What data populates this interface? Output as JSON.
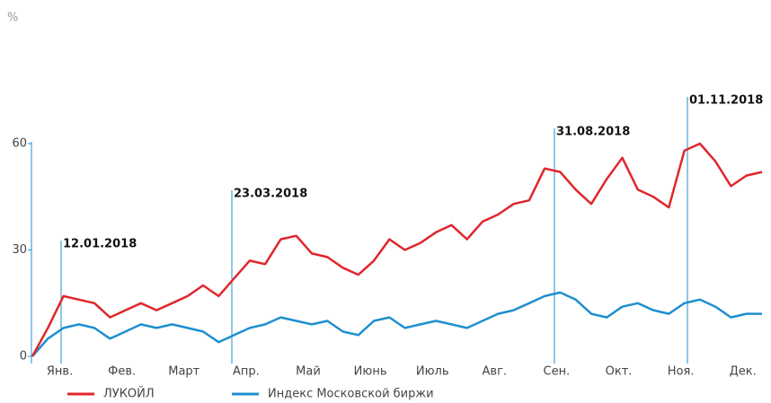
{
  "chart_data": {
    "type": "line",
    "y_label": "%",
    "categories": [
      null,
      null,
      "Янв.",
      null,
      null,
      null,
      "Фев.",
      null,
      null,
      null,
      "Март",
      null,
      null,
      null,
      "Апр.",
      null,
      null,
      null,
      "Май",
      null,
      null,
      null,
      "Июнь",
      null,
      null,
      null,
      "Июль",
      null,
      null,
      null,
      "Авг.",
      null,
      null,
      null,
      "Сен.",
      null,
      null,
      null,
      "Окт.",
      null,
      null,
      null,
      "Ноя.",
      null,
      null,
      null,
      "Дек.",
      null
    ],
    "series": [
      {
        "name": "ЛУКОЙЛ",
        "color": "#e0262c",
        "values": [
          0,
          8,
          17,
          16,
          15,
          11,
          13,
          15,
          13,
          15,
          17,
          20,
          17,
          22,
          27,
          26,
          33,
          34,
          29,
          28,
          25,
          23,
          27,
          33,
          30,
          32,
          35,
          37,
          33,
          38,
          40,
          43,
          44,
          53,
          52,
          47,
          43,
          50,
          56,
          47,
          45,
          42,
          58,
          60,
          55,
          48,
          51,
          52
        ]
      },
      {
        "name": "Индекс Московской биржи",
        "color": "#1f8fd0",
        "values": [
          0,
          5,
          8,
          9,
          8,
          5,
          7,
          9,
          8,
          9,
          8,
          7,
          4,
          6,
          8,
          9,
          11,
          10,
          9,
          10,
          7,
          6,
          10,
          11,
          8,
          9,
          10,
          9,
          8,
          10,
          12,
          13,
          15,
          17,
          18,
          16,
          12,
          11,
          14,
          15,
          13,
          12,
          15,
          16,
          14,
          11,
          12,
          12
        ]
      }
    ],
    "annotations": [
      "12.01.2018",
      "23.03.2018",
      "31.08.2018",
      "01.11.2018"
    ],
    "ylim": [
      0,
      60
    ],
    "yticks": [
      0,
      30,
      60
    ]
  }
}
